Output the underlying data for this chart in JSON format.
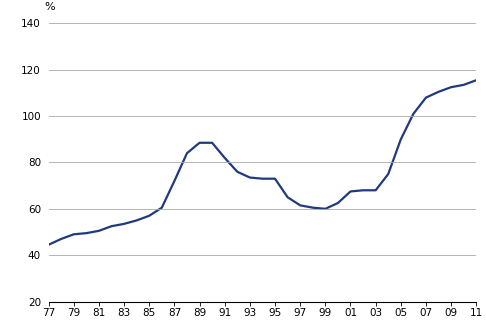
{
  "years": [
    1977,
    1978,
    1979,
    1980,
    1981,
    1982,
    1983,
    1984,
    1985,
    1986,
    1987,
    1988,
    1989,
    1990,
    1991,
    1992,
    1993,
    1994,
    1995,
    1996,
    1997,
    1998,
    1999,
    2000,
    2001,
    2002,
    2003,
    2004,
    2005,
    2006,
    2007,
    2008,
    2009,
    2010,
    2011
  ],
  "values": [
    44.5,
    47.0,
    49.0,
    49.5,
    50.5,
    52.5,
    53.5,
    55.0,
    57.0,
    60.5,
    72.0,
    84.0,
    88.5,
    88.5,
    82.0,
    76.0,
    73.5,
    73.0,
    73.0,
    65.0,
    61.5,
    60.5,
    60.0,
    62.5,
    67.5,
    68.0,
    68.0,
    75.0,
    90.0,
    101.0,
    108.0,
    110.5,
    112.5,
    113.5,
    115.5
  ],
  "line_color": "#1F3A7D",
  "line_width": 1.6,
  "xlim": [
    1977,
    2011
  ],
  "ylim": [
    20,
    140
  ],
  "yticks": [
    20,
    40,
    60,
    80,
    100,
    120,
    140
  ],
  "xtick_labels": [
    "77",
    "79",
    "81",
    "83",
    "85",
    "87",
    "89",
    "91",
    "93",
    "95",
    "97",
    "99",
    "01",
    "03",
    "05",
    "07",
    "09",
    "11"
  ],
  "xtick_years": [
    1977,
    1979,
    1981,
    1983,
    1985,
    1987,
    1989,
    1991,
    1993,
    1995,
    1997,
    1999,
    2001,
    2003,
    2005,
    2007,
    2009,
    2011
  ],
  "ylabel": "%",
  "background_color": "#ffffff",
  "grid_color": "#aaaaaa",
  "tick_fontsize": 7.5,
  "label_fontsize": 8
}
